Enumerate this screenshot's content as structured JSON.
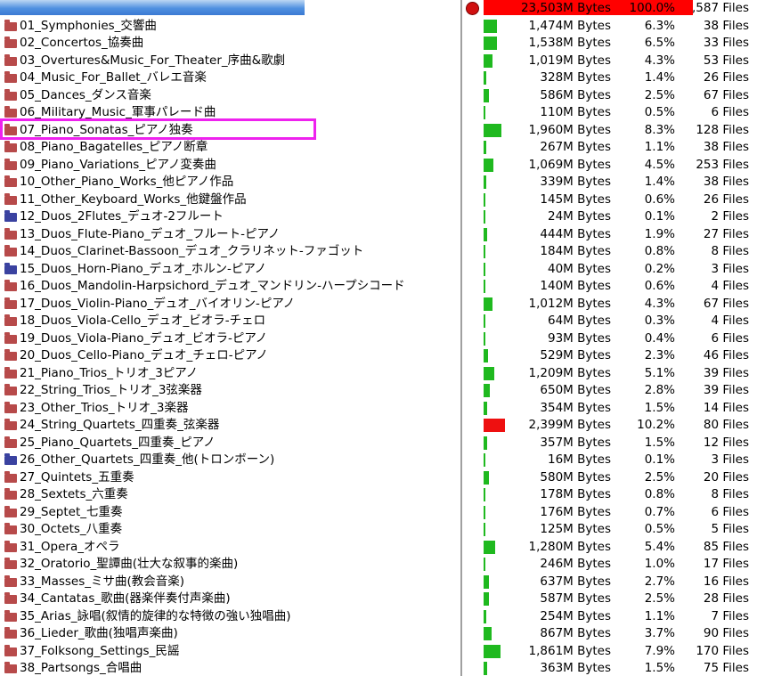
{
  "total": {
    "bytes": "23,503M Bytes",
    "pct": "100.0%",
    "files": ",587 Files"
  },
  "colors": {
    "green_bar": "#1fb91f",
    "red_bar": "#ee1010",
    "highlight": "#ee22ee",
    "folder": "#b74a4a",
    "folder_blue": "#3a42a0"
  },
  "rows": [
    {
      "name": "01_Symphonies_交響曲",
      "bytes": "1,474M Bytes",
      "pct": "6.3%",
      "files": "38 Files",
      "ratio": 0.063,
      "icon": "folder-icon"
    },
    {
      "name": "02_Concertos_協奏曲",
      "bytes": "1,538M Bytes",
      "pct": "6.5%",
      "files": "33 Files",
      "ratio": 0.065,
      "icon": "folder-icon"
    },
    {
      "name": "03_Overtures&Music_For_Theater_序曲&歌劇",
      "bytes": "1,019M Bytes",
      "pct": "4.3%",
      "files": "53 Files",
      "ratio": 0.043,
      "icon": "folder-icon"
    },
    {
      "name": "04_Music_For_Ballet_バレエ音楽",
      "bytes": "328M Bytes",
      "pct": "1.4%",
      "files": "26 Files",
      "ratio": 0.014,
      "icon": "folder-icon"
    },
    {
      "name": "05_Dances_ダンス音楽",
      "bytes": "586M Bytes",
      "pct": "2.5%",
      "files": "67 Files",
      "ratio": 0.025,
      "icon": "folder-icon"
    },
    {
      "name": "06_Military_Music_軍事パレード曲",
      "bytes": "110M Bytes",
      "pct": "0.5%",
      "files": "6 Files",
      "ratio": 0.005,
      "icon": "folder-icon"
    },
    {
      "name": "07_Piano_Sonatas_ピアノ独奏",
      "bytes": "1,960M Bytes",
      "pct": "8.3%",
      "files": "128 Files",
      "ratio": 0.083,
      "icon": "folder-icon"
    },
    {
      "name": "08_Piano_Bagatelles_ピアノ断章",
      "bytes": "267M Bytes",
      "pct": "1.1%",
      "files": "38 Files",
      "ratio": 0.011,
      "icon": "folder-icon"
    },
    {
      "name": "09_Piano_Variations_ピアノ変奏曲",
      "bytes": "1,069M Bytes",
      "pct": "4.5%",
      "files": "253 Files",
      "ratio": 0.045,
      "icon": "folder-icon"
    },
    {
      "name": "10_Other_Piano_Works_他ピアノ作品",
      "bytes": "339M Bytes",
      "pct": "1.4%",
      "files": "38 Files",
      "ratio": 0.014,
      "icon": "folder-icon"
    },
    {
      "name": "11_Other_Keyboard_Works_他鍵盤作品",
      "bytes": "145M Bytes",
      "pct": "0.6%",
      "files": "26 Files",
      "ratio": 0.006,
      "icon": "folder-icon"
    },
    {
      "name": "12_Duos_2Flutes_デュオ-2フルート",
      "bytes": "24M Bytes",
      "pct": "0.1%",
      "files": "2 Files",
      "ratio": 0.001,
      "icon": "folder-blue-icon"
    },
    {
      "name": "13_Duos_Flute-Piano_デュオ_フルート-ピアノ",
      "bytes": "444M Bytes",
      "pct": "1.9%",
      "files": "27 Files",
      "ratio": 0.019,
      "icon": "folder-icon"
    },
    {
      "name": "14_Duos_Clarinet-Bassoon_デュオ_クラリネット-ファゴット",
      "bytes": "184M Bytes",
      "pct": "0.8%",
      "files": "8 Files",
      "ratio": 0.008,
      "icon": "folder-icon"
    },
    {
      "name": "15_Duos_Horn-Piano_デュオ_ホルン-ピアノ",
      "bytes": "40M Bytes",
      "pct": "0.2%",
      "files": "3 Files",
      "ratio": 0.002,
      "icon": "folder-blue-icon"
    },
    {
      "name": "16_Duos_Mandolin-Harpsichord_デュオ_マンドリン-ハープシコード",
      "bytes": "140M Bytes",
      "pct": "0.6%",
      "files": "4 Files",
      "ratio": 0.006,
      "icon": "folder-icon"
    },
    {
      "name": "17_Duos_Violin-Piano_デュオ_バイオリン-ピアノ",
      "bytes": "1,012M Bytes",
      "pct": "4.3%",
      "files": "67 Files",
      "ratio": 0.043,
      "icon": "folder-icon"
    },
    {
      "name": "18_Duos_Viola-Cello_デュオ_ビオラ-チェロ",
      "bytes": "64M Bytes",
      "pct": "0.3%",
      "files": "4 Files",
      "ratio": 0.003,
      "icon": "folder-icon"
    },
    {
      "name": "19_Duos_Viola-Piano_デュオ_ビオラ-ピアノ",
      "bytes": "93M Bytes",
      "pct": "0.4%",
      "files": "6 Files",
      "ratio": 0.004,
      "icon": "folder-icon"
    },
    {
      "name": "20_Duos_Cello-Piano_デュオ_チェロ-ピアノ",
      "bytes": "529M Bytes",
      "pct": "2.3%",
      "files": "46 Files",
      "ratio": 0.023,
      "icon": "folder-icon"
    },
    {
      "name": "21_Piano_Trios_トリオ_3ピアノ",
      "bytes": "1,209M Bytes",
      "pct": "5.1%",
      "files": "39 Files",
      "ratio": 0.051,
      "icon": "folder-icon"
    },
    {
      "name": "22_String_Trios_トリオ_3弦楽器",
      "bytes": "650M Bytes",
      "pct": "2.8%",
      "files": "39 Files",
      "ratio": 0.028,
      "icon": "folder-icon"
    },
    {
      "name": "23_Other_Trios_トリオ_3楽器",
      "bytes": "354M Bytes",
      "pct": "1.5%",
      "files": "14 Files",
      "ratio": 0.015,
      "icon": "folder-icon"
    },
    {
      "name": "24_String_Quartets_四重奏_弦楽器",
      "bytes": "2,399M Bytes",
      "pct": "10.2%",
      "files": "80 Files",
      "ratio": 0.102,
      "icon": "folder-icon",
      "red": true
    },
    {
      "name": "25_Piano_Quartets_四重奏_ピアノ",
      "bytes": "357M Bytes",
      "pct": "1.5%",
      "files": "12 Files",
      "ratio": 0.015,
      "icon": "folder-icon"
    },
    {
      "name": "26_Other_Quartets_四重奏_他(トロンボーン)",
      "bytes": "16M Bytes",
      "pct": "0.1%",
      "files": "3 Files",
      "ratio": 0.001,
      "icon": "folder-blue-icon"
    },
    {
      "name": "27_Quintets_五重奏",
      "bytes": "580M Bytes",
      "pct": "2.5%",
      "files": "20 Files",
      "ratio": 0.025,
      "icon": "folder-icon"
    },
    {
      "name": "28_Sextets_六重奏",
      "bytes": "178M Bytes",
      "pct": "0.8%",
      "files": "8 Files",
      "ratio": 0.008,
      "icon": "folder-icon"
    },
    {
      "name": "29_Septet_七重奏",
      "bytes": "176M Bytes",
      "pct": "0.7%",
      "files": "6 Files",
      "ratio": 0.007,
      "icon": "folder-icon"
    },
    {
      "name": "30_Octets_八重奏",
      "bytes": "125M Bytes",
      "pct": "0.5%",
      "files": "5 Files",
      "ratio": 0.005,
      "icon": "folder-icon"
    },
    {
      "name": "31_Opera_オペラ",
      "bytes": "1,280M Bytes",
      "pct": "5.4%",
      "files": "85 Files",
      "ratio": 0.054,
      "icon": "folder-icon"
    },
    {
      "name": "32_Oratorio_聖譚曲(壮大な叙事的楽曲)",
      "bytes": "246M Bytes",
      "pct": "1.0%",
      "files": "17 Files",
      "ratio": 0.01,
      "icon": "folder-icon"
    },
    {
      "name": "33_Masses_ミサ曲(教会音楽)",
      "bytes": "637M Bytes",
      "pct": "2.7%",
      "files": "16 Files",
      "ratio": 0.027,
      "icon": "folder-icon"
    },
    {
      "name": "34_Cantatas_歌曲(器楽伴奏付声楽曲)",
      "bytes": "587M Bytes",
      "pct": "2.5%",
      "files": "28 Files",
      "ratio": 0.025,
      "icon": "folder-icon"
    },
    {
      "name": "35_Arias_詠唱(叙情的旋律的な特徴の強い独唱曲)",
      "bytes": "254M Bytes",
      "pct": "1.1%",
      "files": "7 Files",
      "ratio": 0.011,
      "icon": "folder-icon"
    },
    {
      "name": "36_Lieder_歌曲(独唱声楽曲)",
      "bytes": "867M Bytes",
      "pct": "3.7%",
      "files": "90 Files",
      "ratio": 0.037,
      "icon": "folder-icon"
    },
    {
      "name": "37_Folksong_Settings_民謡",
      "bytes": "1,861M Bytes",
      "pct": "7.9%",
      "files": "170 Files",
      "ratio": 0.079,
      "icon": "folder-icon"
    },
    {
      "name": "38_Partsongs_合唱曲",
      "bytes": "363M Bytes",
      "pct": "1.5%",
      "files": "75 Files",
      "ratio": 0.015,
      "icon": "folder-icon"
    }
  ]
}
